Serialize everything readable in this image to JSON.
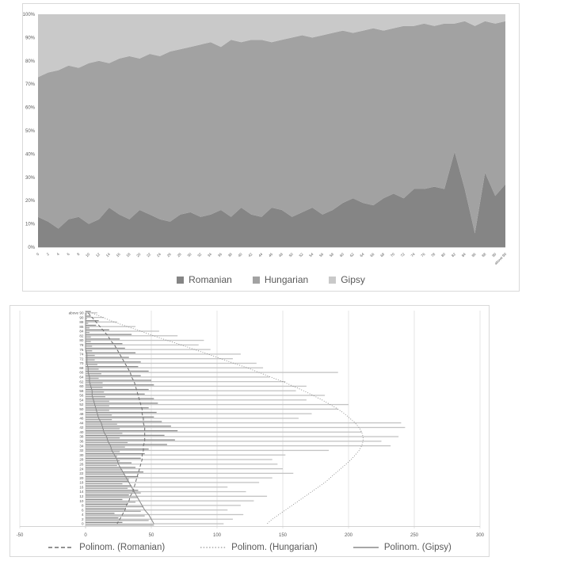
{
  "chart_data": [
    {
      "type": "area",
      "subtype": "stacked-100-percent",
      "title": "",
      "ylim": [
        0,
        100
      ],
      "y_tick_labels": [
        "0%",
        "10%",
        "20%",
        "30%",
        "40%",
        "50%",
        "60%",
        "70%",
        "80%",
        "90%",
        "100%"
      ],
      "categories": [
        "0",
        "2",
        "4",
        "6",
        "8",
        "10",
        "12",
        "14",
        "16",
        "18",
        "20",
        "22",
        "24",
        "26",
        "28",
        "30",
        "32",
        "34",
        "36",
        "38",
        "40",
        "42",
        "44",
        "46",
        "48",
        "50",
        "52",
        "54",
        "56",
        "58",
        "60",
        "62",
        "64",
        "66",
        "68",
        "70",
        "72",
        "74",
        "76",
        "78",
        "80",
        "82",
        "84",
        "86",
        "88",
        "90",
        "above 90"
      ],
      "series": [
        {
          "name": "Romanian",
          "color": "#858585",
          "values": [
            13,
            11,
            8,
            12,
            13,
            10,
            12,
            17,
            14,
            12,
            16,
            14,
            12,
            11,
            14,
            15,
            13,
            14,
            16,
            13,
            17,
            14,
            13,
            17,
            16,
            13,
            15,
            17,
            14,
            16,
            19,
            21,
            19,
            18,
            21,
            23,
            21,
            25,
            25,
            26,
            25,
            41,
            25,
            6,
            32,
            22,
            27
          ]
        },
        {
          "name": "Hungarian",
          "color": "#a2a2a2",
          "values": [
            60,
            64,
            68,
            66,
            64,
            69,
            68,
            62,
            67,
            70,
            65,
            69,
            70,
            73,
            71,
            71,
            74,
            74,
            70,
            76,
            71,
            75,
            76,
            71,
            73,
            77,
            76,
            73,
            77,
            76,
            74,
            71,
            74,
            76,
            72,
            71,
            74,
            70,
            71,
            69,
            71,
            55,
            72,
            89,
            65,
            74,
            70
          ]
        },
        {
          "name": "Gipsy",
          "color": "#c9c9c9",
          "values": [
            27,
            25,
            24,
            22,
            23,
            21,
            20,
            21,
            19,
            18,
            19,
            17,
            18,
            16,
            15,
            14,
            13,
            12,
            14,
            11,
            12,
            11,
            11,
            12,
            11,
            10,
            9,
            10,
            9,
            8,
            7,
            8,
            7,
            6,
            7,
            6,
            5,
            5,
            4,
            5,
            4,
            4,
            3,
            5,
            3,
            4,
            3
          ]
        }
      ],
      "legend_position": "bottom",
      "grid": false
    },
    {
      "type": "bar",
      "subtype": "horizontal-clustered-with-polynomial-trendlines",
      "title": "",
      "xlim": [
        -50,
        300
      ],
      "x_tick_labels": [
        "-50",
        "0",
        "50",
        "100",
        "150",
        "200",
        "250",
        "300"
      ],
      "x_ticks": [
        -50,
        0,
        50,
        100,
        150,
        200,
        250,
        300
      ],
      "categories": [
        "above 90",
        "90",
        "88",
        "86",
        "84",
        "82",
        "80",
        "78",
        "76",
        "74",
        "72",
        "70",
        "68",
        "66",
        "64",
        "62",
        "60",
        "58",
        "56",
        "54",
        "52",
        "50",
        "48",
        "46",
        "44",
        "42",
        "40",
        "38",
        "36",
        "34",
        "32",
        "30",
        "28",
        "26",
        "24",
        "22",
        "20",
        "18",
        "16",
        "14",
        "12",
        "10",
        "8",
        "6",
        "4",
        "2",
        "0"
      ],
      "series": [
        {
          "name": "Romanian",
          "color": "#8a8a8a",
          "values": [
            4,
            4,
            10,
            8,
            18,
            35,
            26,
            28,
            30,
            38,
            33,
            42,
            40,
            48,
            42,
            50,
            52,
            48,
            45,
            52,
            55,
            48,
            54,
            52,
            58,
            65,
            70,
            60,
            68,
            62,
            48,
            45,
            42,
            35,
            38,
            44,
            40,
            33,
            35,
            40,
            33,
            28,
            32,
            30,
            22,
            25,
            28
          ]
        },
        {
          "name": "Hungarian",
          "color": "#c3c3c3",
          "values": [
            9,
            14,
            24,
            38,
            56,
            70,
            90,
            86,
            95,
            118,
            112,
            130,
            135,
            192,
            140,
            152,
            168,
            160,
            182,
            168,
            200,
            192,
            172,
            162,
            240,
            243,
            210,
            238,
            225,
            232,
            185,
            152,
            142,
            146,
            150,
            158,
            142,
            132,
            108,
            122,
            138,
            128,
            118,
            108,
            120,
            112,
            105
          ]
        },
        {
          "name": "Gipsy",
          "color": "#a6a6a6",
          "values": [
            1,
            1,
            2,
            3,
            3,
            4,
            4,
            5,
            5,
            7,
            7,
            9,
            10,
            12,
            10,
            13,
            13,
            14,
            15,
            18,
            18,
            18,
            20,
            20,
            24,
            26,
            28,
            26,
            32,
            30,
            26,
            24,
            26,
            24,
            28,
            30,
            33,
            28,
            32,
            42,
            40,
            38,
            44,
            42,
            45,
            48,
            52
          ]
        }
      ],
      "trendlines": [
        {
          "label": "Polinom. (Romanian)",
          "style": "dashed",
          "color": "#6e6e6e",
          "values": [
            2,
            5,
            8,
            11,
            14,
            17,
            19,
            22,
            24,
            26,
            28,
            30,
            32,
            34,
            35,
            37,
            38,
            39,
            40,
            41,
            42,
            43,
            43,
            44,
            44,
            45,
            45,
            45,
            45,
            44,
            44,
            43,
            43,
            42,
            41,
            40,
            39,
            38,
            37,
            36,
            34,
            33,
            31,
            30,
            28,
            26,
            24
          ]
        },
        {
          "label": "Polinom. (Hungarian)",
          "style": "dotted",
          "color": "#7d7d7d",
          "values": [
            5,
            13,
            22,
            32,
            42,
            52,
            62,
            73,
            83,
            93,
            103,
            113,
            123,
            132,
            141,
            150,
            158,
            166,
            173,
            180,
            186,
            192,
            197,
            201,
            205,
            208,
            210,
            211,
            211,
            210,
            208,
            205,
            202,
            198,
            194,
            190,
            186,
            182,
            177,
            172,
            167,
            162,
            157,
            152,
            147,
            142,
            138
          ]
        },
        {
          "label": "Polinom. (Gipsy)",
          "style": "solid",
          "color": "#8a8a8a",
          "values": [
            0,
            0,
            0,
            0,
            0,
            0,
            0,
            0,
            0,
            1,
            1,
            1,
            2,
            2,
            3,
            3,
            4,
            5,
            5,
            6,
            7,
            8,
            9,
            10,
            12,
            13,
            14,
            16,
            17,
            19,
            20,
            22,
            24,
            25,
            27,
            29,
            31,
            33,
            35,
            37,
            39,
            41,
            43,
            45,
            48,
            50,
            52
          ]
        }
      ],
      "legend_position": "bottom",
      "grid": true
    }
  ]
}
